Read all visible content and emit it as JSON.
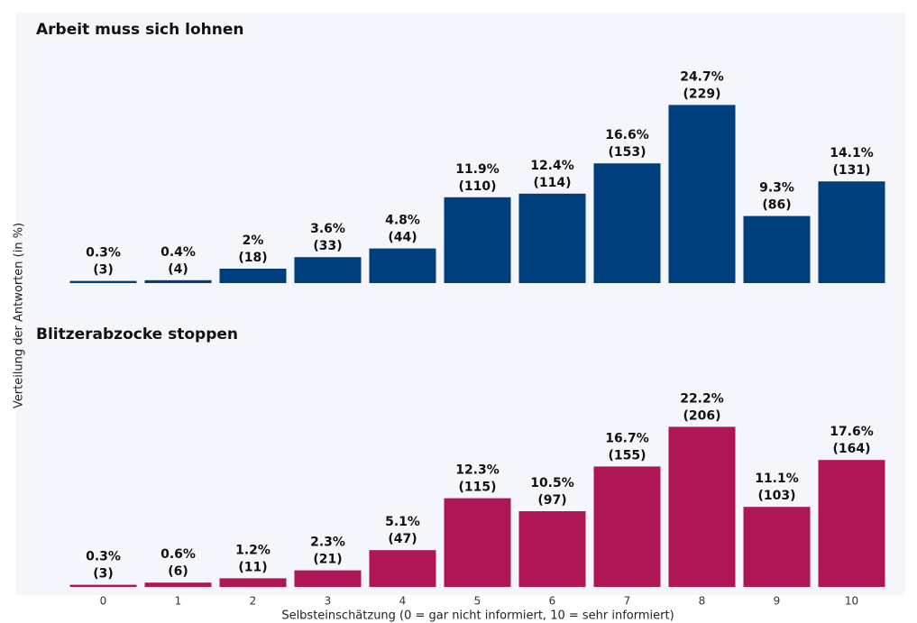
{
  "chart_data": [
    {
      "type": "bar",
      "title": "Arbeit muss sich lohnen",
      "y_label": "Verteilung der Antworten (in %)",
      "color": "#003f7d",
      "values": [
        0.3,
        0.4,
        2,
        3.6,
        4.8,
        11.9,
        12.4,
        16.6,
        24.7,
        9.3,
        14.1
      ],
      "value_labels": [
        "0.3%",
        "0.4%",
        "2%",
        "3.6%",
        "4.8%",
        "11.9%",
        "12.4%",
        "16.6%",
        "24.7%",
        "9.3%",
        "14.1%"
      ],
      "count_labels": [
        "(3)",
        "(4)",
        "(18)",
        "(33)",
        "(44)",
        "(110)",
        "(114)",
        "(153)",
        "(229)",
        "(86)",
        "(131)"
      ],
      "ylim": [
        0,
        30
      ]
    },
    {
      "type": "bar",
      "title": "Blitzerabzocke stoppen",
      "x_label": "Selbsteinschätzung (0 = gar nicht informiert, 10 = sehr informiert)",
      "color": "#ae1656",
      "categories": [
        "0",
        "1",
        "2",
        "3",
        "4",
        "5",
        "6",
        "7",
        "8",
        "9",
        "10"
      ],
      "values": [
        0.3,
        0.6,
        1.2,
        2.3,
        5.1,
        12.3,
        10.5,
        16.7,
        22.2,
        11.1,
        17.6
      ],
      "value_labels": [
        "0.3%",
        "0.6%",
        "1.2%",
        "2.3%",
        "5.1%",
        "12.3%",
        "10.5%",
        "16.7%",
        "22.2%",
        "11.1%",
        "17.6%"
      ],
      "count_labels": [
        "(3)",
        "(6)",
        "(11)",
        "(21)",
        "(47)",
        "(115)",
        "(97)",
        "(155)",
        "(206)",
        "(103)",
        "(164)"
      ],
      "ylim": [
        0,
        30
      ]
    }
  ]
}
